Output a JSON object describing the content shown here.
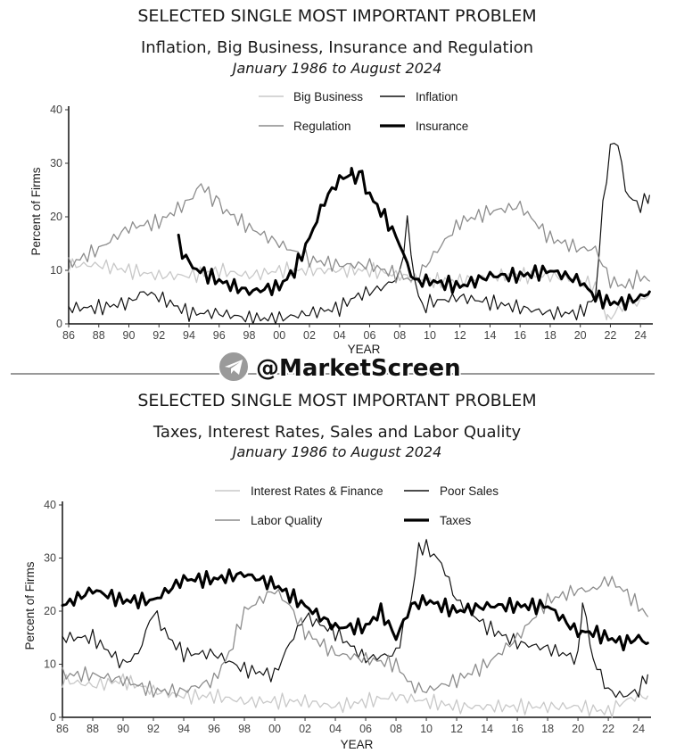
{
  "watermark": {
    "text": "@MarketScreen",
    "icon": "telegram-icon"
  },
  "colors": {
    "big_business": "#c8c8c8",
    "inflation": "#111111",
    "regulation": "#8c8c8c",
    "insurance": "#000000",
    "interest_rates": "#c8c8c8",
    "poor_sales": "#111111",
    "labor_quality": "#8c8c8c",
    "taxes": "#000000"
  },
  "chart_data": [
    {
      "type": "line",
      "title": "SELECTED SINGLE MOST IMPORTANT PROBLEM",
      "subtitle": "Inflation, Big Business, Insurance and Regulation",
      "date_range": "January 1986 to August 2024",
      "xlabel": "YEAR",
      "ylabel": "Percent of Firms",
      "xlim": [
        1986,
        2024.7
      ],
      "ylim": [
        0,
        40
      ],
      "x_ticks": [
        1986,
        1988,
        1990,
        1992,
        1994,
        1996,
        1998,
        2000,
        2002,
        2004,
        2006,
        2008,
        2010,
        2012,
        2014,
        2016,
        2018,
        2020,
        2022,
        2024
      ],
      "x_tick_labels": [
        "86",
        "88",
        "90",
        "92",
        "94",
        "96",
        "98",
        "00",
        "02",
        "04",
        "06",
        "08",
        "10",
        "12",
        "14",
        "16",
        "18",
        "20",
        "22",
        "24"
      ],
      "y_ticks": [
        0,
        10,
        20,
        30,
        40
      ],
      "y_tick_labels": [
        "0",
        "10",
        "20",
        "30",
        "40"
      ],
      "legend_position": "top-center",
      "series": [
        {
          "name": "Big Business",
          "style": "light-thin",
          "x": [
            1986,
            1988,
            1990,
            1992,
            1994,
            1996,
            1998,
            2000,
            2002,
            2004,
            2006,
            2008,
            2010,
            2012,
            2014,
            2016,
            2018,
            2020,
            2021,
            2021.8,
            2022.3,
            2023,
            2024,
            2024.6
          ],
          "y": [
            11,
            11,
            10,
            9,
            9,
            10,
            9,
            10,
            10,
            10,
            10,
            9,
            8,
            8,
            9,
            9,
            9,
            8,
            7,
            1,
            2,
            4,
            4,
            6
          ]
        },
        {
          "name": "Inflation",
          "style": "dark-thin",
          "x": [
            1986,
            1988,
            1990,
            1991,
            1992,
            1994,
            1996,
            1998,
            2000,
            2002,
            2004,
            2005,
            2006,
            2007,
            2008,
            2008.5,
            2009,
            2009.5,
            2010,
            2012,
            2014,
            2016,
            2018,
            2020,
            2021,
            2021.5,
            2022,
            2022.5,
            2023,
            2023.5,
            2024,
            2024.6
          ],
          "y": [
            3,
            3,
            4,
            6,
            5,
            2,
            2,
            1,
            1,
            2,
            3,
            5,
            6,
            7,
            9,
            19,
            8,
            3,
            4,
            5,
            4,
            3,
            2,
            2,
            5,
            22,
            33,
            34,
            25,
            23,
            22,
            24
          ]
        },
        {
          "name": "Regulation",
          "style": "mid-thin",
          "x": [
            1986,
            1988,
            1990,
            1992,
            1994,
            1994.8,
            1996,
            1998,
            2000,
            2002,
            2004,
            2006,
            2008,
            2009,
            2010,
            2012,
            2014,
            2016,
            2018,
            2020,
            2021,
            2022,
            2023,
            2024,
            2024.6
          ],
          "y": [
            11,
            14,
            18,
            19,
            23,
            26,
            22,
            18,
            15,
            12,
            11,
            11,
            9,
            8,
            12,
            19,
            21,
            22,
            16,
            14,
            14,
            8,
            7,
            9,
            8
          ]
        },
        {
          "name": "Insurance",
          "style": "black-thick",
          "x": [
            1993.3,
            1994,
            1996,
            1998,
            2000,
            2001,
            2002,
            2003,
            2004,
            2004.8,
            2005.5,
            2006,
            2007,
            2008,
            2008.5,
            2009,
            2010,
            2012,
            2014,
            2016,
            2018,
            2020,
            2021,
            2022,
            2023,
            2024,
            2024.6
          ],
          "y": [
            15,
            11,
            8,
            6,
            7,
            10,
            16,
            23,
            27,
            28,
            27,
            24,
            20,
            15,
            11,
            8,
            8,
            7,
            9,
            9,
            10,
            8,
            5,
            4,
            4,
            5,
            6
          ]
        }
      ]
    },
    {
      "type": "line",
      "title": "SELECTED SINGLE MOST IMPORTANT PROBLEM",
      "subtitle": "Taxes, Interest Rates, Sales and Labor Quality",
      "date_range": "January 1986 to August 2024",
      "xlabel": "YEAR",
      "ylabel": "Percent of Firms",
      "xlim": [
        1986,
        2024.7
      ],
      "ylim": [
        0,
        40
      ],
      "x_ticks": [
        1986,
        1988,
        1990,
        1992,
        1994,
        1996,
        1998,
        2000,
        2002,
        2004,
        2006,
        2008,
        2010,
        2012,
        2014,
        2016,
        2018,
        2020,
        2022,
        2024
      ],
      "x_tick_labels": [
        "86",
        "88",
        "90",
        "92",
        "94",
        "96",
        "98",
        "00",
        "02",
        "04",
        "06",
        "08",
        "10",
        "12",
        "14",
        "16",
        "18",
        "20",
        "22",
        "24"
      ],
      "y_ticks": [
        0,
        10,
        20,
        30,
        40
      ],
      "y_tick_labels": [
        "0",
        "10",
        "20",
        "30",
        "40"
      ],
      "legend_position": "top-center",
      "series": [
        {
          "name": "Interest Rates & Finance",
          "style": "light-thin",
          "x": [
            1986,
            1988,
            1990,
            1992,
            1994,
            1996,
            1998,
            2000,
            2002,
            2004,
            2006,
            2008,
            2010,
            2012,
            2014,
            2016,
            2018,
            2020,
            2022,
            2023,
            2024,
            2024.6
          ],
          "y": [
            7,
            6,
            7,
            5,
            4,
            4,
            3,
            3,
            3,
            2,
            3,
            4,
            3,
            2,
            2,
            2,
            2,
            2,
            1,
            3,
            4,
            4
          ]
        },
        {
          "name": "Poor Sales",
          "style": "dark-thin",
          "x": [
            1986,
            1988,
            1990,
            1991,
            1992,
            1993,
            1994,
            1996,
            1998,
            2000,
            2001,
            2002,
            2004,
            2006,
            2008,
            2009,
            2009.5,
            2010,
            2011,
            2012,
            2014,
            2016,
            2018,
            2020,
            2020.3,
            2021,
            2022,
            2023,
            2024,
            2024.6
          ],
          "y": [
            15,
            15,
            10,
            12,
            20,
            15,
            12,
            12,
            9,
            8,
            14,
            19,
            16,
            11,
            12,
            22,
            32,
            32,
            29,
            22,
            17,
            14,
            13,
            11,
            22,
            11,
            5,
            4,
            5,
            8
          ]
        },
        {
          "name": "Labor Quality",
          "style": "mid-thin",
          "x": [
            1986,
            1988,
            1990,
            1992,
            1994,
            1996,
            1997,
            1998,
            2000,
            2001,
            2002,
            2004,
            2006,
            2008,
            2009,
            2010,
            2012,
            2014,
            2016,
            2018,
            2020,
            2021,
            2022,
            2023,
            2024,
            2024.6
          ],
          "y": [
            8,
            8,
            7,
            5,
            5,
            7,
            12,
            20,
            24,
            21,
            16,
            12,
            11,
            10,
            6,
            5,
            7,
            10,
            15,
            22,
            24,
            24,
            26,
            24,
            21,
            19
          ]
        },
        {
          "name": "Taxes",
          "style": "black-thick",
          "x": [
            1986,
            1988,
            1990,
            1992,
            1994,
            1996,
            1998,
            2000,
            2002,
            2004,
            2006,
            2007,
            2008,
            2009,
            2010,
            2012,
            2014,
            2016,
            2018,
            2020,
            2021,
            2022,
            2023,
            2024,
            2024.6
          ],
          "y": [
            21,
            24,
            22,
            22,
            26,
            26,
            27,
            25,
            21,
            17,
            17,
            20,
            15,
            21,
            22,
            20,
            21,
            21,
            21,
            16,
            16,
            15,
            14,
            15,
            14
          ]
        }
      ]
    }
  ]
}
